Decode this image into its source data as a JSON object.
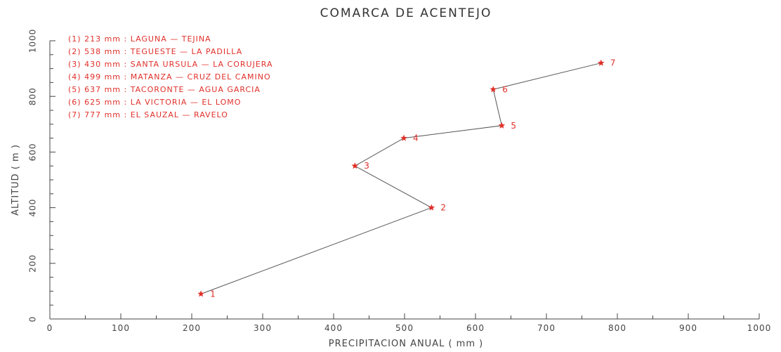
{
  "chart_data": {
    "type": "line",
    "title": "COMARCA DE ACENTEJO",
    "xlabel": "PRECIPITACION ANUAL ( mm )",
    "ylabel": "ALTITUD ( m )",
    "xlim": [
      0,
      1000
    ],
    "ylim": [
      0,
      1000
    ],
    "x_ticks": [
      0,
      100,
      200,
      300,
      400,
      500,
      600,
      700,
      800,
      900,
      1000
    ],
    "y_ticks": [
      0,
      200,
      400,
      600,
      800,
      1000
    ],
    "grid": false,
    "legend_position": "top-left",
    "colors": {
      "marker": "#e0302a",
      "line": "#555555",
      "axis": "#444444"
    },
    "points": [
      {
        "label": "1",
        "x": 213,
        "y": 90
      },
      {
        "label": "2",
        "x": 538,
        "y": 400
      },
      {
        "label": "3",
        "x": 430,
        "y": 550
      },
      {
        "label": "4",
        "x": 499,
        "y": 650
      },
      {
        "label": "5",
        "x": 637,
        "y": 695
      },
      {
        "label": "6",
        "x": 625,
        "y": 825
      },
      {
        "label": "7",
        "x": 777,
        "y": 920
      }
    ],
    "legend": [
      "(1)  213 mm : LAGUNA — TEJINA",
      "(2)  538 mm : TEGUESTE — LA PADILLA",
      "(3)  430 mm : SANTA URSULA — LA CORUJERA",
      "(4)  499 mm : MATANZA — CRUZ DEL CAMINO",
      "(5)  637 mm : TACORONTE — AGUA GARCIA",
      "(6)  625 mm : LA VICTORIA — EL LOMO",
      "(7)  777 mm : EL SAUZAL — RAVELO"
    ]
  }
}
